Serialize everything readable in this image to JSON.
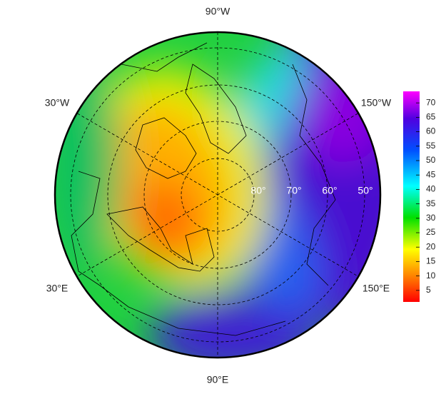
{
  "map": {
    "meridian_labels": [
      "90°W",
      "150°W",
      "150°E",
      "90°E",
      "30°E",
      "30°W"
    ],
    "latitude_labels": [
      "80°",
      "70°",
      "60°",
      "50°"
    ]
  },
  "colorbar": {
    "lim": [
      1,
      74
    ],
    "ticks": [
      5,
      10,
      15,
      20,
      25,
      30,
      35,
      40,
      45,
      50,
      55,
      60,
      65,
      70
    ]
  }
}
